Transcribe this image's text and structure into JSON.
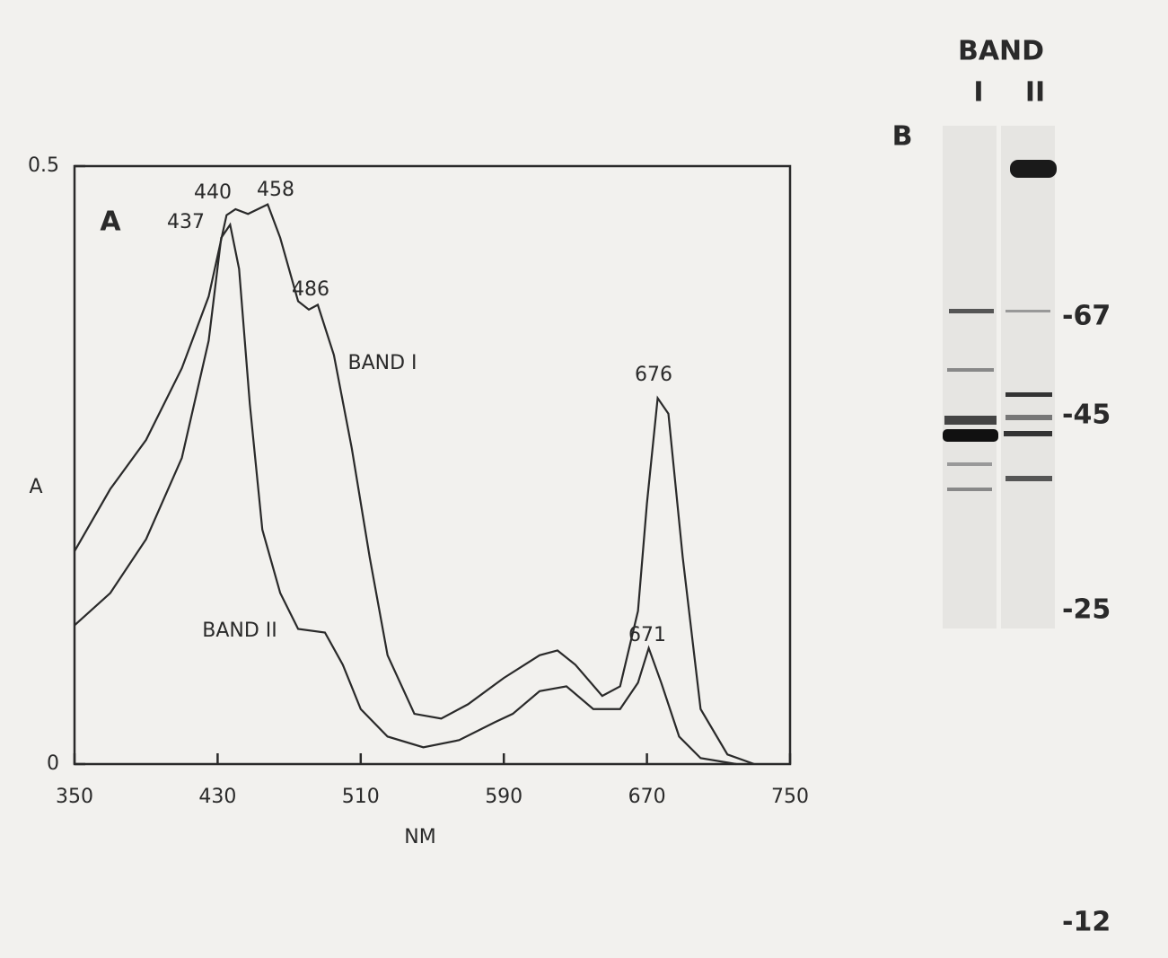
{
  "chart_data": {
    "type": "line",
    "panel_label": "A",
    "xlabel": "NM",
    "ylabel": "A",
    "xlim": [
      350,
      750
    ],
    "ylim": [
      0,
      0.5
    ],
    "xticks": [
      350,
      430,
      510,
      590,
      670,
      750
    ],
    "yticks": [
      0,
      0.5
    ],
    "series": [
      {
        "name": "BAND I",
        "color": "#2a2a2a",
        "x": [
          350,
          370,
          390,
          410,
          425,
          435,
          440,
          447,
          458,
          465,
          475,
          481,
          486,
          495,
          505,
          515,
          525,
          540,
          555,
          570,
          590,
          610,
          620,
          630,
          645,
          655,
          665,
          670,
          676,
          682,
          690,
          700,
          715,
          730
        ],
        "values": [
          0.178,
          0.23,
          0.271,
          0.331,
          0.391,
          0.459,
          0.464,
          0.46,
          0.468,
          0.44,
          0.387,
          0.38,
          0.384,
          0.342,
          0.264,
          0.173,
          0.091,
          0.042,
          0.038,
          0.05,
          0.072,
          0.091,
          0.095,
          0.083,
          0.057,
          0.065,
          0.128,
          0.218,
          0.306,
          0.293,
          0.173,
          0.046,
          0.008,
          0
        ]
      },
      {
        "name": "BAND II",
        "color": "#2a2a2a",
        "x": [
          350,
          370,
          390,
          410,
          425,
          432,
          437,
          442,
          448,
          455,
          465,
          475,
          490,
          500,
          510,
          525,
          545,
          565,
          585,
          595,
          610,
          625,
          640,
          655,
          665,
          671,
          678,
          688,
          700,
          720
        ],
        "values": [
          0.116,
          0.143,
          0.188,
          0.256,
          0.354,
          0.44,
          0.451,
          0.414,
          0.301,
          0.196,
          0.143,
          0.113,
          0.11,
          0.083,
          0.046,
          0.023,
          0.014,
          0.02,
          0.035,
          0.042,
          0.061,
          0.065,
          0.046,
          0.046,
          0.068,
          0.097,
          0.068,
          0.023,
          0.005,
          0
        ]
      }
    ],
    "annotations": [
      "440",
      "458",
      "437",
      "486",
      "676",
      "671"
    ]
  },
  "gel": {
    "label": "B",
    "title": "BAND",
    "lanes": [
      "I",
      "II"
    ],
    "markers": [
      "-67",
      "-45",
      "-25",
      "-12"
    ]
  }
}
